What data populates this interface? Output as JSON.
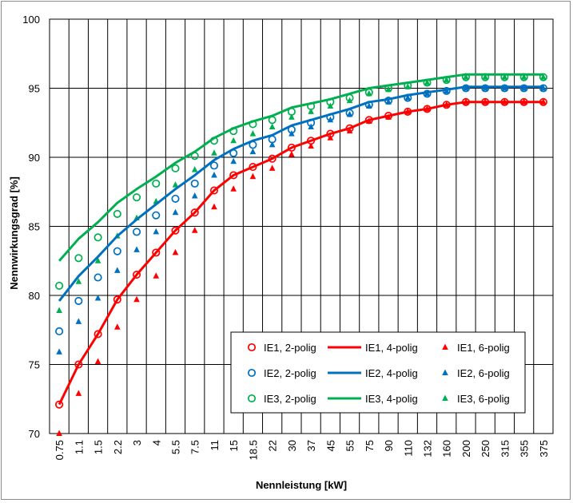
{
  "chart_data": {
    "type": "line",
    "title": "",
    "xlabel": "Nennleistung [kW]",
    "ylabel": "Nennwirkungsgrad [%]",
    "ylim": [
      70,
      100
    ],
    "yticks": [
      "70",
      "75",
      "80",
      "85",
      "90",
      "95",
      "100"
    ],
    "grid": true,
    "legend_position": "bottom-right",
    "categories": [
      "0.75",
      "1.1",
      "1.5",
      "2.2",
      "3",
      "4",
      "5.5",
      "7.5",
      "11",
      "15",
      "18.5",
      "22",
      "30",
      "37",
      "45",
      "55",
      "75",
      "90",
      "110",
      "132",
      "160",
      "200",
      "250",
      "315",
      "355",
      "375"
    ],
    "colors": {
      "IE1": "#ff0000",
      "IE2": "#0070c0",
      "IE3": "#00b050"
    },
    "series": [
      {
        "name": "IE1, 2-polig",
        "class": "IE1",
        "style": "circle",
        "values": [
          72.1,
          75.0,
          77.2,
          79.7,
          81.5,
          83.1,
          84.7,
          86.0,
          87.6,
          88.7,
          89.3,
          89.9,
          90.7,
          91.2,
          91.7,
          92.1,
          92.7,
          93.0,
          93.3,
          93.5,
          93.8,
          94.0,
          94.0,
          94.0,
          94.0,
          94.0
        ]
      },
      {
        "name": "IE1, 4-polig",
        "class": "IE1",
        "style": "line",
        "values": [
          72.1,
          75.0,
          77.2,
          79.7,
          81.5,
          83.1,
          84.7,
          86.0,
          87.6,
          88.7,
          89.3,
          89.9,
          90.7,
          91.2,
          91.7,
          92.1,
          92.7,
          93.0,
          93.3,
          93.5,
          93.8,
          94.0,
          94.0,
          94.0,
          94.0,
          94.0
        ]
      },
      {
        "name": "IE1, 6-polig",
        "class": "IE1",
        "style": "triangle",
        "values": [
          70.0,
          72.9,
          75.2,
          77.7,
          79.7,
          81.4,
          83.1,
          84.7,
          86.4,
          87.7,
          88.6,
          89.2,
          90.2,
          90.8,
          91.4,
          91.9,
          92.6,
          92.9,
          93.3,
          93.5,
          93.8,
          94.0,
          94.0,
          94.0,
          94.0,
          94.0
        ]
      },
      {
        "name": "IE2, 2-polig",
        "class": "IE2",
        "style": "circle",
        "values": [
          77.4,
          79.6,
          81.3,
          83.2,
          84.6,
          85.8,
          87.0,
          88.1,
          89.4,
          90.3,
          90.9,
          91.3,
          92.0,
          92.5,
          92.9,
          93.2,
          93.8,
          94.1,
          94.3,
          94.6,
          94.8,
          95.0,
          95.0,
          95.0,
          95.0,
          95.0
        ]
      },
      {
        "name": "IE2, 4-polig",
        "class": "IE2",
        "style": "line",
        "values": [
          79.6,
          81.4,
          82.8,
          84.3,
          85.5,
          86.6,
          87.7,
          88.7,
          89.8,
          90.6,
          91.2,
          91.6,
          92.3,
          92.7,
          93.1,
          93.5,
          94.0,
          94.2,
          94.5,
          94.7,
          94.9,
          95.1,
          95.1,
          95.1,
          95.1,
          95.1
        ]
      },
      {
        "name": "IE2, 6-polig",
        "class": "IE2",
        "style": "triangle",
        "values": [
          75.9,
          78.1,
          79.8,
          81.8,
          83.3,
          84.6,
          86.0,
          87.2,
          88.7,
          89.7,
          90.4,
          90.9,
          91.7,
          92.2,
          92.7,
          93.1,
          93.7,
          94.0,
          94.3,
          94.6,
          94.8,
          95.0,
          95.0,
          95.0,
          95.0,
          95.0
        ]
      },
      {
        "name": "IE3, 2-polig",
        "class": "IE3",
        "style": "circle",
        "values": [
          80.7,
          82.7,
          84.2,
          85.9,
          87.1,
          88.1,
          89.2,
          90.1,
          91.2,
          91.9,
          92.4,
          92.7,
          93.3,
          93.7,
          94.0,
          94.3,
          94.7,
          95.0,
          95.2,
          95.4,
          95.6,
          95.8,
          95.8,
          95.8,
          95.8,
          95.8
        ]
      },
      {
        "name": "IE3, 4-polig",
        "class": "IE3",
        "style": "line",
        "values": [
          82.5,
          84.1,
          85.3,
          86.7,
          87.7,
          88.6,
          89.6,
          90.4,
          91.4,
          92.1,
          92.6,
          93.0,
          93.6,
          93.9,
          94.2,
          94.6,
          95.0,
          95.2,
          95.4,
          95.6,
          95.8,
          96.0,
          96.0,
          96.0,
          96.0,
          96.0
        ]
      },
      {
        "name": "IE3, 6-polig",
        "class": "IE3",
        "style": "triangle",
        "values": [
          78.9,
          81.0,
          82.5,
          84.3,
          85.6,
          86.8,
          88.0,
          89.1,
          90.3,
          91.2,
          91.7,
          92.2,
          92.9,
          93.3,
          93.7,
          94.1,
          94.6,
          94.9,
          95.1,
          95.4,
          95.6,
          95.8,
          95.8,
          95.8,
          95.8,
          95.8
        ]
      }
    ]
  }
}
